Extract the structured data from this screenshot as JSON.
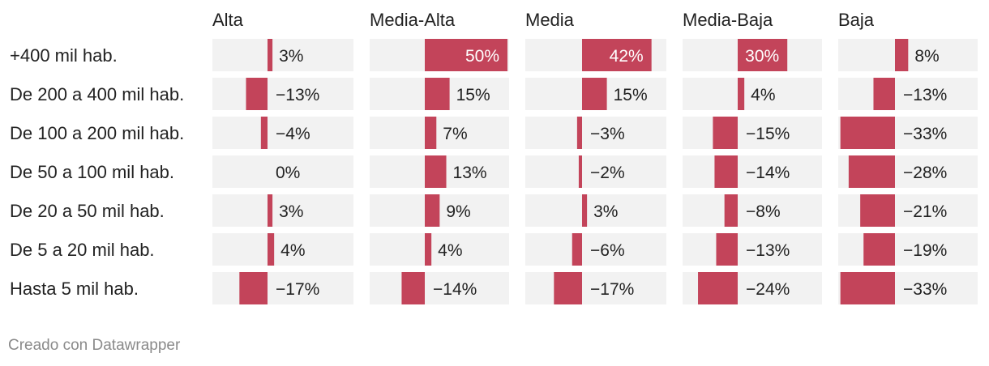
{
  "chart_data": {
    "type": "bar",
    "subtype": "split-bars-diverging",
    "columns": [
      "Alta",
      "Media-Alta",
      "Media",
      "Media-Baja",
      "Baja"
    ],
    "categories": [
      "+400 mil hab.",
      "De 200 a 400 mil hab.",
      "De 100 a 200 mil hab.",
      "De 50 a 100 mil hab.",
      "De 20 a 50 mil hab.",
      "De 5 a 20 mil hab.",
      "Hasta 5 mil hab."
    ],
    "series": [
      {
        "name": "Alta",
        "values": [
          3,
          -13,
          -4,
          0,
          3,
          4,
          -17
        ],
        "labels": [
          "3%",
          "−13%",
          "−4%",
          "0%",
          "3%",
          "4%",
          "−17%"
        ]
      },
      {
        "name": "Media-Alta",
        "values": [
          50,
          15,
          7,
          13,
          9,
          4,
          -14
        ],
        "labels": [
          "50%",
          "15%",
          "7%",
          "13%",
          "9%",
          "4%",
          "−14%"
        ]
      },
      {
        "name": "Media",
        "values": [
          42,
          15,
          -3,
          -2,
          3,
          -6,
          -17
        ],
        "labels": [
          "42%",
          "15%",
          "−3%",
          "−2%",
          "3%",
          "−6%",
          "−17%"
        ]
      },
      {
        "name": "Media-Baja",
        "values": [
          30,
          4,
          -15,
          -14,
          -8,
          -13,
          -24
        ],
        "labels": [
          "30%",
          "4%",
          "−15%",
          "−14%",
          "−8%",
          "−13%",
          "−24%"
        ]
      },
      {
        "name": "Baja",
        "values": [
          8,
          -13,
          -33,
          -28,
          -21,
          -19,
          -33
        ],
        "labels": [
          "8%",
          "−13%",
          "−33%",
          "−28%",
          "−21%",
          "−19%",
          "−33%"
        ]
      }
    ],
    "unit": "%",
    "bar_color": "#c3445a",
    "background_color": "#f2f2f2"
  },
  "footer": {
    "credit": "Creado con Datawrapper"
  }
}
